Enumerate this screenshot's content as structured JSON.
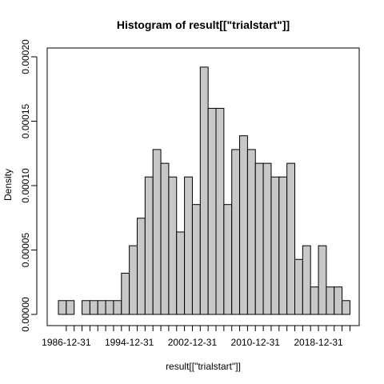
{
  "chart_data": {
    "type": "bar",
    "title": "Histogram of result[[\"trialstart\"]]",
    "xlabel": "result[[\"trialstart\"]]",
    "ylabel": "Density",
    "ylim": [
      0,
      0.0002
    ],
    "y_ticks": [
      "0.00000",
      "0.00005",
      "0.00010",
      "0.00015",
      "0.00020"
    ],
    "x_tick_labels": [
      "1986-12-31",
      "1994-12-31",
      "2002-12-31",
      "2010-12-31",
      "2018-12-31"
    ],
    "bin_start": "1985-12-31",
    "bin_width_years": 1,
    "values": [
      1.07e-05,
      1.07e-05,
      0,
      1.07e-05,
      1.07e-05,
      1.07e-05,
      1.07e-05,
      1.07e-05,
      3.2e-05,
      5.33e-05,
      7.47e-05,
      0.0001067,
      0.000128,
      0.0001173,
      0.0001067,
      6.4e-05,
      0.0001067,
      8.53e-05,
      0.000192,
      0.00016,
      0.00016,
      8.53e-05,
      0.000128,
      0.0001387,
      0.000128,
      0.0001173,
      0.0001173,
      0.0001067,
      0.0001067,
      0.0001173,
      4.27e-05,
      5.33e-05,
      2.13e-05,
      5.33e-05,
      2.13e-05,
      2.13e-05,
      1.07e-05
    ],
    "grid": false,
    "colors": {
      "bar_fill": "#c8c8c8",
      "bar_stroke": "#000000"
    }
  }
}
